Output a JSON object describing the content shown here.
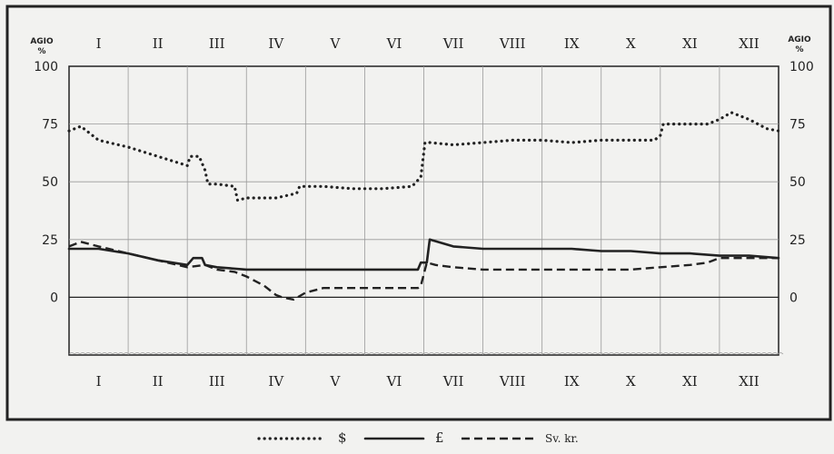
{
  "chart_data": {
    "type": "line",
    "y_axis_title": "AGIO",
    "y_axis_unit": "%",
    "ylim": [
      -25,
      100
    ],
    "yticks": [
      0,
      25,
      50,
      75,
      100
    ],
    "ytick_labels": [
      "0",
      "25",
      "50",
      "75",
      "100"
    ],
    "xlim": [
      0,
      12
    ],
    "categories": [
      "I",
      "II",
      "III",
      "IV",
      "V",
      "VI",
      "VII",
      "VIII",
      "IX",
      "X",
      "XI",
      "XII"
    ],
    "grid": true,
    "series": [
      {
        "name": "$",
        "style": "dotted",
        "x": [
          0,
          0.2,
          0.5,
          1,
          1.5,
          2,
          2.05,
          2.2,
          2.3,
          2.35,
          2.5,
          2.8,
          2.85,
          3,
          3.5,
          3.85,
          3.9,
          4.3,
          4.8,
          5.3,
          5.8,
          5.95,
          6.02,
          6.1,
          6.5,
          7,
          7.5,
          8,
          8.5,
          9,
          9.5,
          9.9,
          10,
          10.05,
          10.5,
          10.8,
          11,
          11.2,
          11.5,
          11.8,
          12
        ],
        "y": [
          72,
          74,
          68,
          65,
          61,
          57,
          61,
          61,
          55,
          49,
          49,
          48,
          42,
          43,
          43,
          45,
          48,
          48,
          47,
          47,
          48,
          52,
          67,
          67,
          66,
          67,
          68,
          68,
          67,
          68,
          68,
          68,
          70,
          75,
          75,
          75,
          77,
          80,
          77,
          73,
          72
        ]
      },
      {
        "name": "£",
        "style": "solid",
        "x": [
          0,
          0.5,
          1,
          1.5,
          2,
          2.1,
          2.25,
          2.3,
          2.5,
          3,
          3.5,
          4,
          4.5,
          5,
          5.5,
          5.9,
          5.95,
          6.05,
          6.1,
          6.5,
          7,
          7.5,
          8,
          8.5,
          9,
          9.5,
          10,
          10.5,
          11,
          11.5,
          12
        ],
        "y": [
          21,
          21,
          19,
          16,
          14,
          17,
          17,
          14,
          13,
          12,
          12,
          12,
          12,
          12,
          12,
          12,
          15,
          15,
          25,
          22,
          21,
          21,
          21,
          21,
          20,
          20,
          19,
          19,
          18,
          18,
          17
        ]
      },
      {
        "name": "Sv. kr.",
        "style": "dashed",
        "x": [
          0,
          0.2,
          0.5,
          1,
          1.5,
          2,
          2.3,
          2.5,
          2.8,
          3,
          3.3,
          3.5,
          3.6,
          3.8,
          4,
          4.3,
          4.8,
          5.3,
          5.9,
          5.95,
          6.05,
          6.2,
          6.5,
          7,
          7.5,
          8,
          8.5,
          9,
          9.5,
          10,
          10.5,
          10.8,
          11,
          11.5,
          12
        ],
        "y": [
          22,
          24,
          22,
          19,
          16,
          13,
          14,
          12,
          11,
          9,
          5,
          1,
          0,
          -1,
          2,
          4,
          4,
          4,
          4,
          5,
          15,
          14,
          13,
          12,
          12,
          12,
          12,
          12,
          12,
          13,
          14,
          15,
          17,
          17,
          17
        ]
      }
    ],
    "legend": {
      "placement": "bottom",
      "entries": [
        "$",
        "£",
        "Sv. kr."
      ]
    }
  },
  "labels": {
    "agio_left": "AGIO",
    "pct_left": "%",
    "agio_right": "AGIO",
    "pct_right": "%"
  },
  "colors": {
    "ink": "#222222",
    "paper": "#f2f2f0",
    "grid": "#9a9a9a"
  }
}
